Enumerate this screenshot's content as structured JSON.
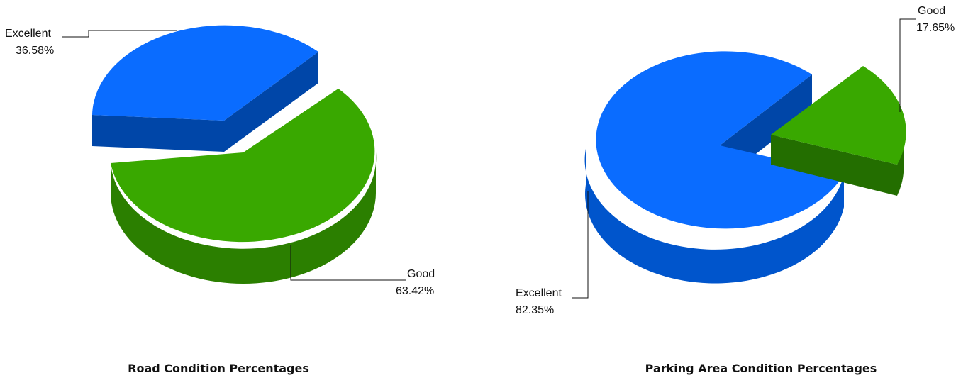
{
  "chart_data": [
    {
      "type": "pie",
      "title": "Road Condition Percentages",
      "categories": [
        "Excellent",
        "Good"
      ],
      "values": [
        36.58,
        63.42
      ],
      "value_labels": [
        "36.58%",
        "63.42%"
      ],
      "colors": {
        "Excellent": "#0a6cff",
        "Good": "#39a800"
      },
      "side_colors": {
        "Excellent": "#0046a8",
        "Good": "#2b7f00"
      },
      "exploded_slice": "Excellent",
      "style": "3d"
    },
    {
      "type": "pie",
      "title": "Parking Area Condition Percentages",
      "categories": [
        "Excellent",
        "Good"
      ],
      "values": [
        82.35,
        17.65
      ],
      "value_labels": [
        "82.35%",
        "17.65%"
      ],
      "colors": {
        "Excellent": "#0a6cff",
        "Good": "#39a800"
      },
      "side_colors": {
        "Excellent": "#0055cc",
        "Good": "#236e00"
      },
      "exploded_slice": "Good",
      "style": "3d"
    }
  ]
}
